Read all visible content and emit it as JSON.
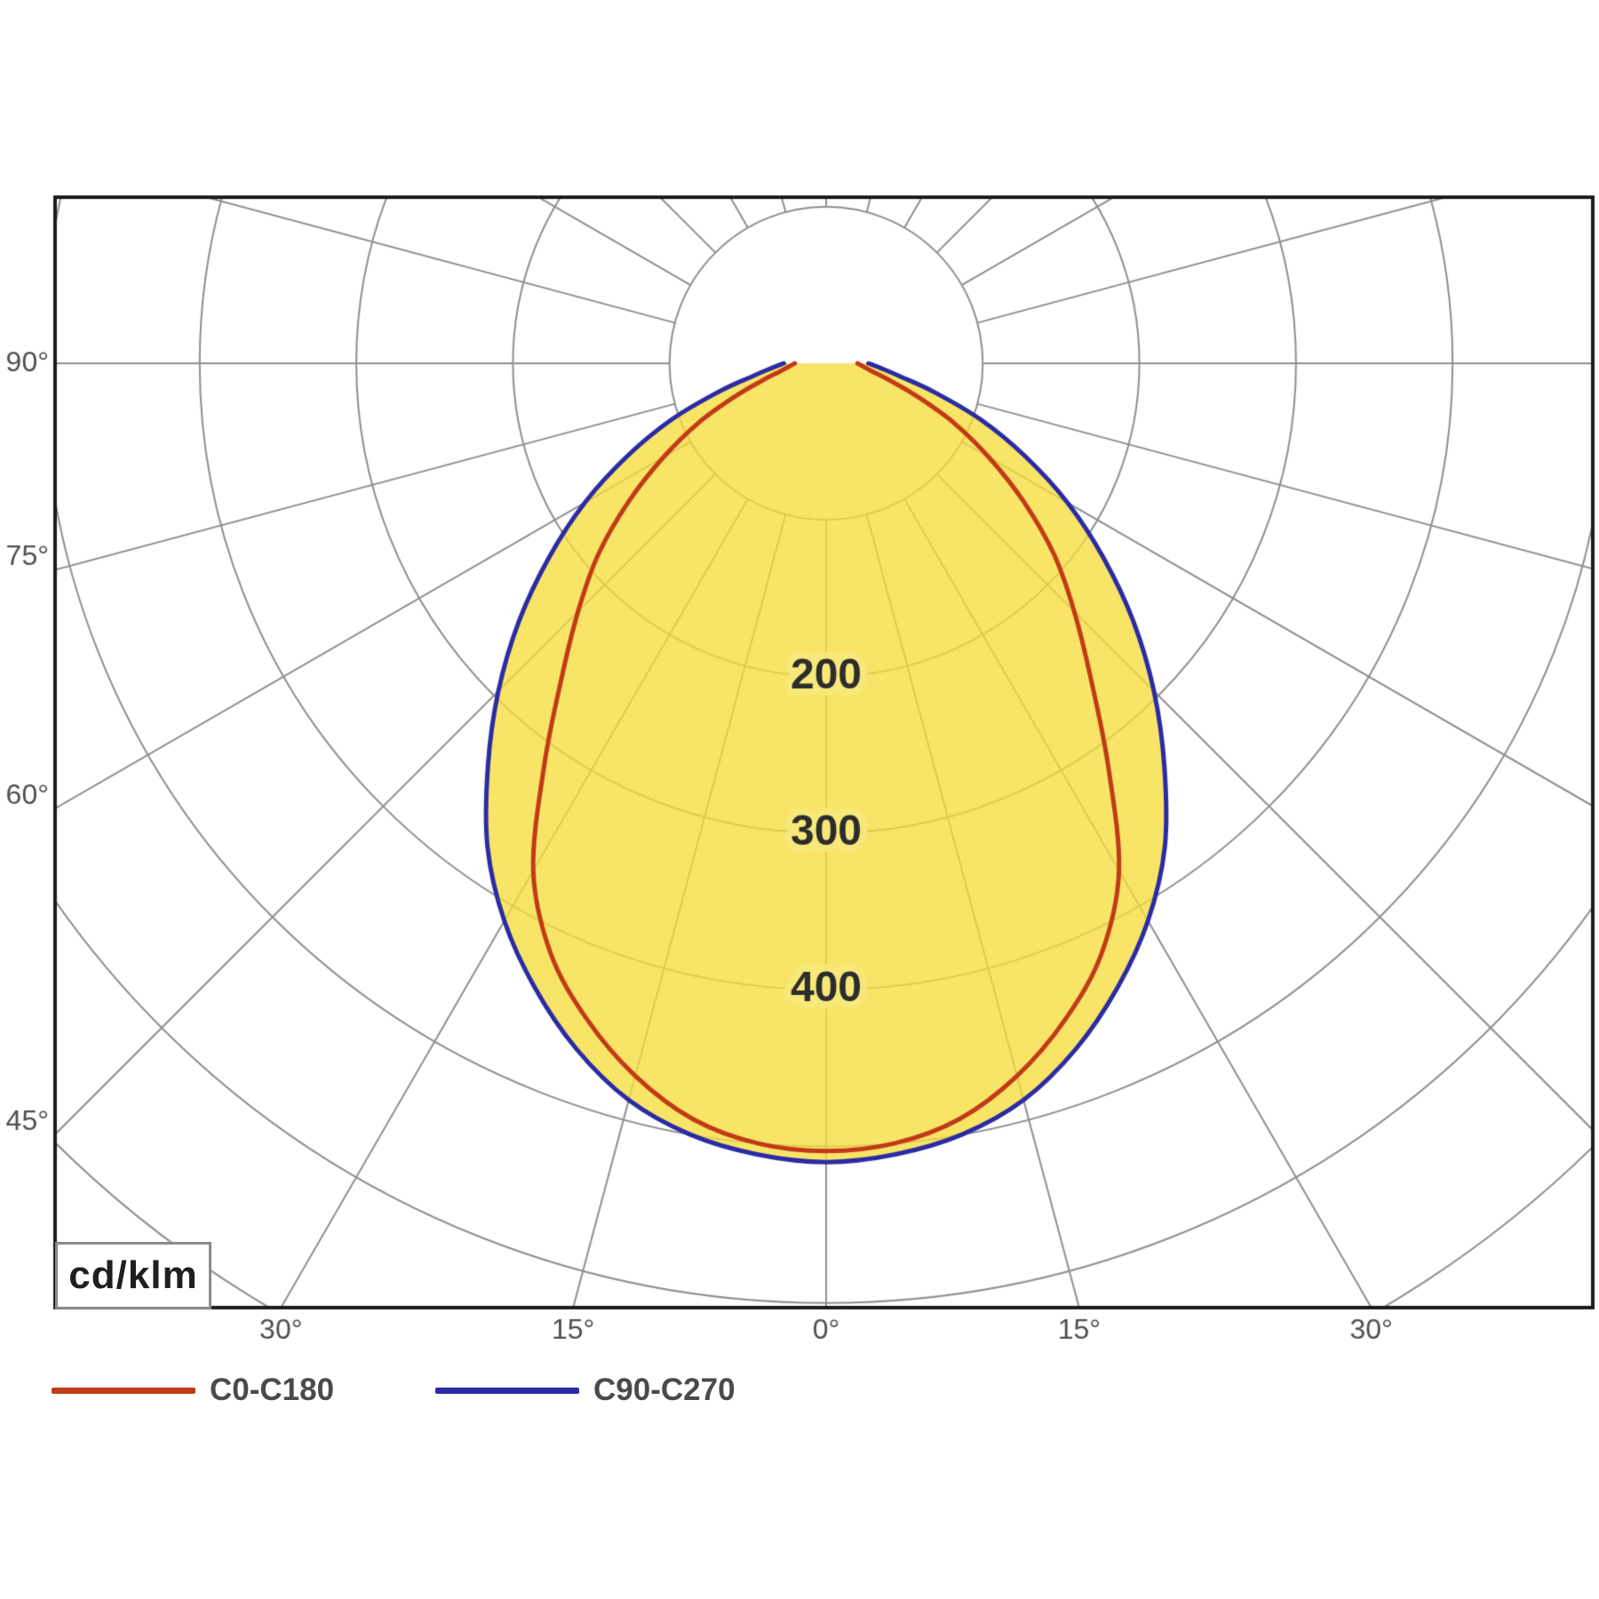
{
  "unit_box": {
    "label": "cd/klm"
  },
  "legend": {
    "items": [
      {
        "label": "C0-C180",
        "color": "#c23a18"
      },
      {
        "label": "C90-C270",
        "color": "#2b2ba4"
      }
    ]
  },
  "chart_data": {
    "type": "polar",
    "subtype": "luminous-intensity-distribution",
    "unit": "cd/klm",
    "ring_step": 100,
    "rings_drawn": [
      100,
      200,
      300,
      400,
      500,
      600,
      700
    ],
    "ring_value_labels": [
      200,
      300,
      400
    ],
    "ray_step_deg": 15,
    "left_ticks": [
      {
        "label": "90°",
        "deg": 90
      },
      {
        "label": "75°",
        "deg": 75
      },
      {
        "label": "60°",
        "deg": 60
      },
      {
        "label": "45°",
        "deg": 45
      }
    ],
    "bottom_ticks": [
      {
        "label": "30°",
        "deg": -30
      },
      {
        "label": "15°",
        "deg": -15
      },
      {
        "label": "0°",
        "deg": 0
      },
      {
        "label": "15°",
        "deg": 15
      },
      {
        "label": "30°",
        "deg": 30
      }
    ],
    "angles_deg": [
      0,
      5,
      10,
      15,
      20,
      25,
      30,
      35,
      40,
      45,
      50,
      55,
      60,
      65,
      70,
      75,
      80,
      85,
      90
    ],
    "series": [
      {
        "name": "C0-C180",
        "color": "#c23a18",
        "values": [
          503,
          500,
          490,
          471,
          446,
          416,
          374,
          314,
          263,
          224,
          190,
          154,
          120,
          90,
          62,
          42,
          30,
          24,
          20
        ]
      },
      {
        "name": "C90-C270",
        "color": "#2b2ba4",
        "values": [
          510,
          507,
          500,
          487,
          466,
          440,
          411,
          377,
          336,
          296,
          256,
          216,
          178,
          140,
          105,
          72,
          48,
          35,
          27
        ]
      }
    ],
    "fill_color": "rgba(246,222,60,0.78)",
    "grid_color": "#8f8f8f",
    "border_color": "#1b1b1b",
    "tick_color": "#4f4f4f",
    "ring_label_color": "#2d2d2d",
    "ring_label_halo": "rgba(247,233,122,0.95)",
    "max_value_hint": 510
  }
}
